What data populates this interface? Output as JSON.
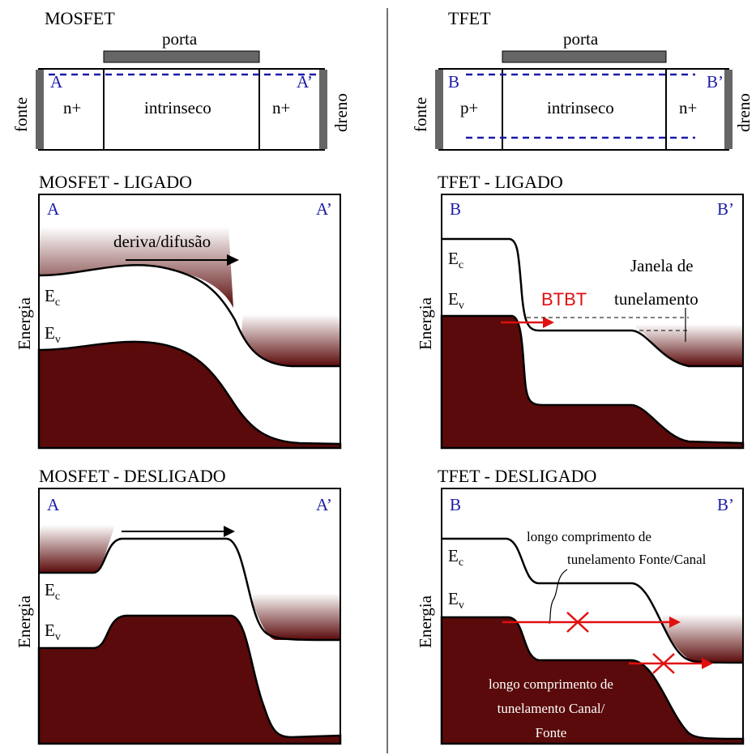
{
  "mosfet_device": {
    "title": "MOSFET",
    "gate": "porta",
    "source": "fonte",
    "drain": "dreno",
    "left_marker": "A",
    "right_marker": "A’",
    "regions": [
      "n+",
      "intrinseco",
      "n+"
    ]
  },
  "tfet_device": {
    "title": "TFET",
    "gate": "porta",
    "source": "fonte",
    "drain": "dreno",
    "left_marker": "B",
    "right_marker": "B’",
    "regions": [
      "p+",
      "intrinseco",
      "n+"
    ]
  },
  "panels": [
    {
      "title": "MOSFET - LIGADO",
      "left_marker": "A",
      "right_marker": "A’",
      "axis_label": "Energia",
      "ec": "E",
      "ec_sub": "c",
      "ev": "E",
      "ev_sub": "v",
      "annotation": "deriva/difusão"
    },
    {
      "title": "MOSFET - DESLIGADO",
      "left_marker": "A",
      "right_marker": "A’",
      "axis_label": "Energia",
      "ec": "E",
      "ec_sub": "c",
      "ev": "E",
      "ev_sub": "v"
    },
    {
      "title": "TFET - LIGADO",
      "left_marker": "B",
      "right_marker": "B’",
      "axis_label": "Energia",
      "ec": "E",
      "ec_sub": "c",
      "ev": "E",
      "ev_sub": "v",
      "annotation": "BTBT",
      "window_label": [
        "Janela de",
        "tunelamento"
      ]
    },
    {
      "title": "TFET - DESLIGADO",
      "left_marker": "B",
      "right_marker": "B’",
      "axis_label": "Energia",
      "ec": "E",
      "ec_sub": "c",
      "ev": "E",
      "ev_sub": "v",
      "source_channel_label": [
        "longo comprimento de",
        "tunelamento Fonte/Canal"
      ],
      "channel_source_label": [
        "longo comprimento de",
        "tunelamento Canal/",
        "Fonte"
      ]
    }
  ]
}
